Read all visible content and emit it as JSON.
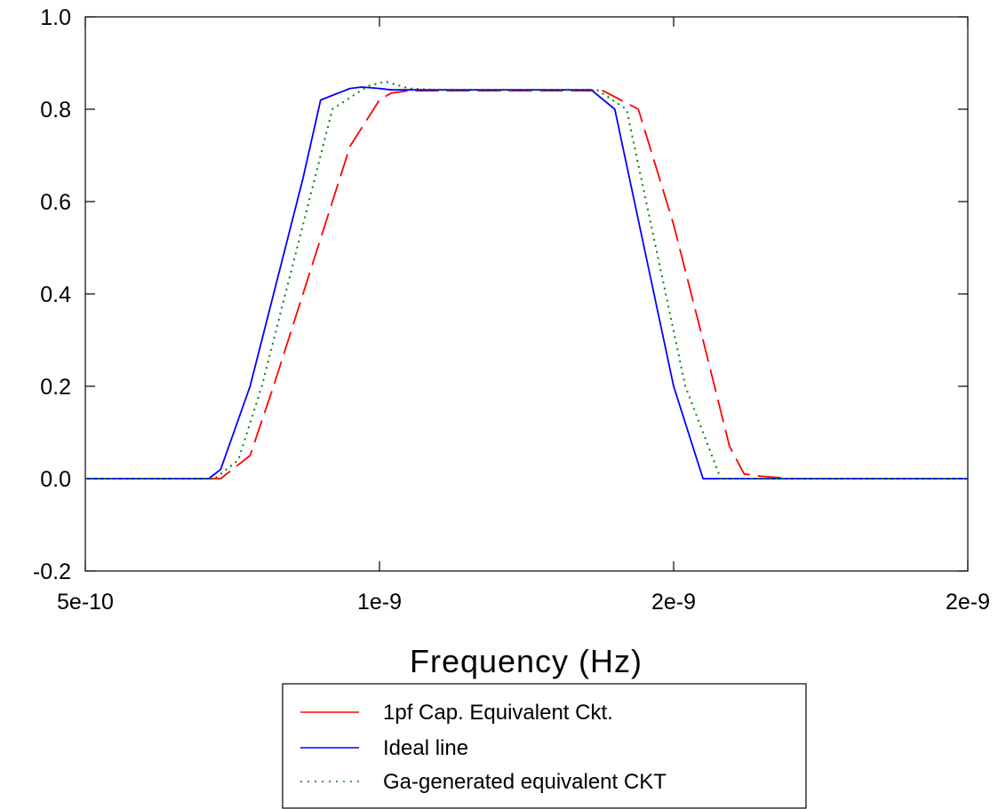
{
  "chart_data": {
    "type": "line",
    "title": "",
    "xlabel": "Frequency (Hz)",
    "ylabel": "",
    "xlim": [
      5e-10,
      2e-09
    ],
    "ylim": [
      -0.2,
      1.0
    ],
    "grid": false,
    "legend_position": "below plot",
    "x_ticks": [
      {
        "value": 5e-10,
        "label": "5e-10"
      },
      {
        "value": 1e-09,
        "label": "1e-9"
      },
      {
        "value": 1.5e-09,
        "label": "2e-9"
      },
      {
        "value": 2e-09,
        "label": "2e-9"
      }
    ],
    "y_ticks": [
      {
        "value": 1.0,
        "label": "1.0"
      },
      {
        "value": 0.8,
        "label": "0.8"
      },
      {
        "value": 0.6,
        "label": "0.6"
      },
      {
        "value": 0.4,
        "label": "0.4"
      },
      {
        "value": 0.2,
        "label": "0.2"
      },
      {
        "value": 0.0,
        "label": "0.0"
      },
      {
        "value": -0.2,
        "label": "-0.2"
      }
    ],
    "series": [
      {
        "name": "1pf Cap. Equivalent Ckt.",
        "color": "#ff0000",
        "dash": "long-dash",
        "x": [
          5e-10,
          7.3e-10,
          7.8e-10,
          8.2e-10,
          9e-10,
          9.5e-10,
          1e-09,
          1.02e-09,
          1.05e-09,
          1.1e-09,
          1.2e-09,
          1.3e-09,
          1.38e-09,
          1.44e-09,
          1.5e-09,
          1.55e-09,
          1.595e-09,
          1.62e-09,
          1.65e-09,
          1.7e-09,
          2e-09
        ],
        "y": [
          0.0,
          0.0,
          0.05,
          0.2,
          0.52,
          0.72,
          0.82,
          0.835,
          0.84,
          0.84,
          0.84,
          0.84,
          0.84,
          0.8,
          0.55,
          0.3,
          0.07,
          0.01,
          0.005,
          0.0,
          0.0
        ]
      },
      {
        "name": "Ideal line",
        "color": "#0000ff",
        "dash": "solid",
        "x": [
          5e-10,
          7.1e-10,
          7.3e-10,
          7.8e-10,
          8.7e-10,
          9e-10,
          9.5e-10,
          9.7e-10,
          1e-09,
          1.02e-09,
          1.1e-09,
          1.2e-09,
          1.3e-09,
          1.36e-09,
          1.4e-09,
          1.45e-09,
          1.5e-09,
          1.55e-09,
          1.57e-09,
          1.6e-09,
          1.65e-09,
          2e-09
        ],
        "y": [
          0.0,
          0.0,
          0.02,
          0.2,
          0.65,
          0.82,
          0.845,
          0.848,
          0.845,
          0.842,
          0.842,
          0.842,
          0.842,
          0.842,
          0.8,
          0.5,
          0.2,
          0.0,
          0.0,
          0.0,
          0.0,
          0.0
        ]
      },
      {
        "name": "Ga-generated equivalent CKT",
        "color": "#008000",
        "dash": "dotted",
        "x": [
          5e-10,
          7.2e-10,
          7.6e-10,
          8e-10,
          8.8e-10,
          9.2e-10,
          9.8e-10,
          1.01e-09,
          1.05e-09,
          1.1e-09,
          1.2e-09,
          1.3e-09,
          1.37e-09,
          1.42e-09,
          1.47e-09,
          1.52e-09,
          1.58e-09,
          1.62e-09,
          2e-09
        ],
        "y": [
          0.0,
          0.0,
          0.04,
          0.2,
          0.6,
          0.8,
          0.85,
          0.86,
          0.845,
          0.842,
          0.842,
          0.842,
          0.842,
          0.8,
          0.5,
          0.2,
          0.0,
          0.0,
          0.0
        ]
      }
    ]
  }
}
